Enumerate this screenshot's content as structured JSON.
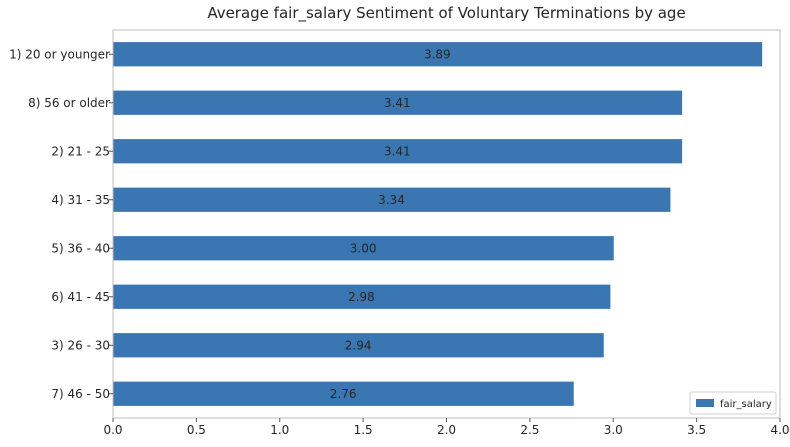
{
  "chart_data": {
    "type": "bar",
    "orientation": "horizontal",
    "title": "Average fair_salary Sentiment of Voluntary Terminations by age",
    "xlabel": "",
    "ylabel": "",
    "categories": [
      "1) 20 or younger",
      "8) 56 or older",
      "2) 21 - 25",
      "4) 31 - 35",
      "5) 36 - 40",
      "6) 41 - 45",
      "3) 26 - 30",
      "7) 46 - 50"
    ],
    "series": [
      {
        "name": "fair_salary",
        "values": [
          3.89,
          3.41,
          3.41,
          3.34,
          3.0,
          2.98,
          2.94,
          2.76
        ],
        "labels": [
          "3.89",
          "3.41",
          "3.41",
          "3.34",
          "3.00",
          "2.98",
          "2.94",
          "2.76"
        ],
        "color": "#3a76b2"
      }
    ],
    "xlim": [
      0,
      4.0
    ],
    "xticks": [
      "0.0",
      "0.5",
      "1.0",
      "1.5",
      "2.0",
      "2.5",
      "3.0",
      "3.5",
      "4.0"
    ],
    "xtick_values": [
      0,
      0.5,
      1.0,
      1.5,
      2.0,
      2.5,
      3.0,
      3.5,
      4.0
    ],
    "grid": false,
    "legend": {
      "placement": "bottom-right",
      "entries": [
        "fair_salary"
      ]
    }
  }
}
